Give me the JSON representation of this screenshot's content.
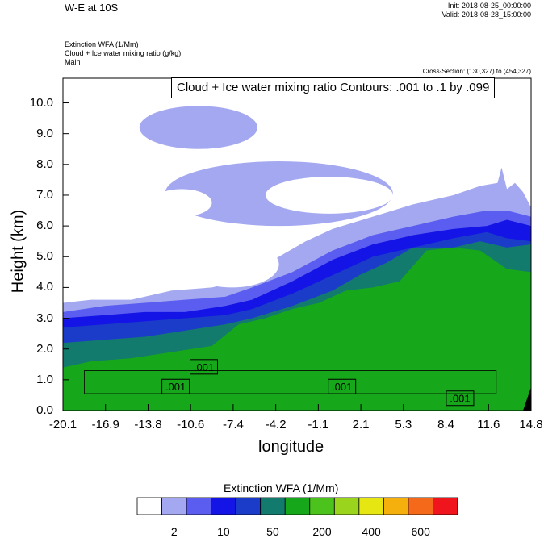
{
  "header": {
    "title": "W-E at 10S",
    "init": "Init: 2018-08-25_00:00:00",
    "valid": "Valid: 2018-08-28_15:00:00",
    "field1": "Extinction WFA   (1/Mm)",
    "field2": "Cloud + Ice water mixing ratio   (g/kg)",
    "field3": "Main",
    "cross_section": "Cross-Section: (130,327) to (454,327)",
    "contour_info": "Cloud + Ice water mixing ratio Contours: .001 to .1 by .099"
  },
  "chart_data": {
    "type": "heatmap",
    "xlabel": "longitude",
    "ylabel": "Height (km)",
    "xlim": [
      -20.1,
      14.8
    ],
    "ylim": [
      0.0,
      10.8
    ],
    "x_ticks": [
      "-20.1",
      "-16.9",
      "-13.8",
      "-10.6",
      "-7.4",
      "-4.2",
      "-1.1",
      "2.1",
      "5.3",
      "8.4",
      "11.6",
      "14.8"
    ],
    "y_ticks": [
      {
        "value": 0.0,
        "label": "0.0"
      },
      {
        "value": 1.0,
        "label": "1.0"
      },
      {
        "value": 2.0,
        "label": "2.0"
      },
      {
        "value": 3.0,
        "label": "3.0"
      },
      {
        "value": 4.0,
        "label": "4.0"
      },
      {
        "value": 5.0,
        "label": "5.0"
      },
      {
        "value": 6.0,
        "label": "6.0"
      },
      {
        "value": 7.0,
        "label": "7.0"
      },
      {
        "value": 8.0,
        "label": "8.0"
      },
      {
        "value": 9.0,
        "label": "9.0"
      },
      {
        "value": 10.0,
        "label": "10.0"
      }
    ],
    "contour_labels": [
      {
        "text": ".001",
        "x": -9.6,
        "y": 1.42
      },
      {
        "text": ".001",
        "x": -11.7,
        "y": 0.78
      },
      {
        "text": ".001",
        "x": 0.7,
        "y": 0.78
      },
      {
        "text": ".001",
        "x": 9.5,
        "y": 0.4
      }
    ],
    "colorbar": {
      "title": "Extinction WFA  (1/Mm)",
      "colors": [
        "#ffffff",
        "#a3a8f0",
        "#5b5df0",
        "#1414e6",
        "#1a3cc8",
        "#137a6e",
        "#16a81a",
        "#4cc21c",
        "#9bd41c",
        "#e6e612",
        "#f5b00e",
        "#f5691a",
        "#f0141c"
      ],
      "labels": [
        {
          "text": "2",
          "index": 1
        },
        {
          "text": "10",
          "index": 3
        },
        {
          "text": "50",
          "index": 5
        },
        {
          "text": "200",
          "index": 7
        },
        {
          "text": "400",
          "index": 9
        },
        {
          "text": "600",
          "index": 11
        }
      ]
    },
    "layers": [
      {
        "name": "light-blue",
        "color": "#a3a8f0",
        "top": [
          [
            -20.1,
            3.5
          ],
          [
            -18,
            3.6
          ],
          [
            -15,
            3.6
          ],
          [
            -12,
            3.9
          ],
          [
            -9,
            4.0
          ],
          [
            -7,
            4.2
          ],
          [
            -6,
            4.5
          ],
          [
            -4,
            5.0
          ],
          [
            -2,
            5.5
          ],
          [
            0,
            5.9
          ],
          [
            3,
            6.3
          ],
          [
            6,
            6.7
          ],
          [
            9,
            7.0
          ],
          [
            11,
            7.3
          ],
          [
            12.3,
            7.4
          ],
          [
            12.6,
            7.9
          ],
          [
            13,
            7.2
          ],
          [
            13.6,
            7.4
          ],
          [
            14.2,
            7.1
          ],
          [
            14.8,
            6.6
          ]
        ]
      },
      {
        "name": "medium-blue",
        "color": "#5b5df0",
        "top": [
          [
            -20.1,
            3.2
          ],
          [
            -17,
            3.4
          ],
          [
            -14,
            3.5
          ],
          [
            -11,
            3.6
          ],
          [
            -8,
            3.7
          ],
          [
            -6,
            4.0
          ],
          [
            -3,
            4.5
          ],
          [
            0,
            5.2
          ],
          [
            3,
            5.7
          ],
          [
            6,
            6.0
          ],
          [
            9,
            6.3
          ],
          [
            11.5,
            6.5
          ],
          [
            13,
            6.5
          ],
          [
            14.8,
            6.3
          ]
        ]
      },
      {
        "name": "blue",
        "color": "#1414e6",
        "top": [
          [
            -20.1,
            3.0
          ],
          [
            -17,
            3.1
          ],
          [
            -14,
            3.2
          ],
          [
            -11,
            3.2
          ],
          [
            -8,
            3.4
          ],
          [
            -6,
            3.6
          ],
          [
            -3,
            4.2
          ],
          [
            0,
            4.9
          ],
          [
            3,
            5.4
          ],
          [
            6,
            5.7
          ],
          [
            9,
            5.9
          ],
          [
            11.5,
            6.0
          ],
          [
            13,
            6.2
          ],
          [
            14.8,
            6.0
          ]
        ]
      },
      {
        "name": "dark-blue",
        "color": "#1a3cc8",
        "top": [
          [
            -20.1,
            2.7
          ],
          [
            -17,
            2.8
          ],
          [
            -14,
            2.9
          ],
          [
            -11,
            3.0
          ],
          [
            -8,
            3.1
          ],
          [
            -6,
            3.3
          ],
          [
            -3,
            3.8
          ],
          [
            0,
            4.4
          ],
          [
            3,
            5.0
          ],
          [
            6,
            5.3
          ],
          [
            9,
            5.6
          ],
          [
            11.5,
            5.8
          ],
          [
            13,
            5.6
          ],
          [
            14.8,
            5.5
          ]
        ]
      },
      {
        "name": "teal",
        "color": "#137a6e",
        "top": [
          [
            -20.1,
            2.2
          ],
          [
            -17,
            2.3
          ],
          [
            -14,
            2.4
          ],
          [
            -11,
            2.6
          ],
          [
            -8,
            2.8
          ],
          [
            -6,
            3.0
          ],
          [
            -3,
            3.4
          ],
          [
            0,
            3.9
          ],
          [
            2,
            4.4
          ],
          [
            4,
            4.8
          ],
          [
            6,
            5.3
          ],
          [
            9,
            5.3
          ],
          [
            11,
            5.5
          ],
          [
            13,
            5.3
          ],
          [
            14.8,
            5.4
          ]
        ]
      },
      {
        "name": "green",
        "color": "#16a81a",
        "top": [
          [
            -20.1,
            1.4
          ],
          [
            -18,
            1.6
          ],
          [
            -15,
            1.7
          ],
          [
            -12,
            1.9
          ],
          [
            -9,
            2.1
          ],
          [
            -7,
            2.8
          ],
          [
            -5,
            3.0
          ],
          [
            -3,
            3.3
          ],
          [
            -1,
            3.5
          ],
          [
            1,
            3.9
          ],
          [
            3,
            4.0
          ],
          [
            5,
            4.2
          ],
          [
            7,
            5.2
          ],
          [
            9,
            5.3
          ],
          [
            11,
            5.2
          ],
          [
            13,
            4.6
          ],
          [
            14.8,
            4.5
          ]
        ]
      }
    ],
    "band": {
      "name": "low-level-band",
      "color": "#16a81a",
      "x0": -18.5,
      "x1": 12.2,
      "y_top": 1.3,
      "y_bottom": 0.55
    },
    "white_patches": [
      {
        "name": "cloud-patch-top",
        "color": "#a3a8f0",
        "x0": -14.4,
        "x1": -5.6,
        "y0": 8.5,
        "y1": 9.9
      },
      {
        "name": "cloud-patch-mid",
        "color": "#a3a8f0",
        "x0": -12.5,
        "x1": 4.5,
        "y0": 6.0,
        "y1": 8.1
      },
      {
        "name": "white-hole-1",
        "color": "#ffffff",
        "x0": -5.0,
        "x1": 4.5,
        "y0": 6.4,
        "y1": 7.6
      },
      {
        "name": "white-hole-2",
        "color": "#ffffff",
        "x0": -13.5,
        "x1": -9.0,
        "y0": 6.3,
        "y1": 7.2
      },
      {
        "name": "white-hole-3",
        "color": "#ffffff",
        "x0": -11.0,
        "x1": -4.0,
        "y0": 4.0,
        "y1": 5.5
      }
    ]
  }
}
